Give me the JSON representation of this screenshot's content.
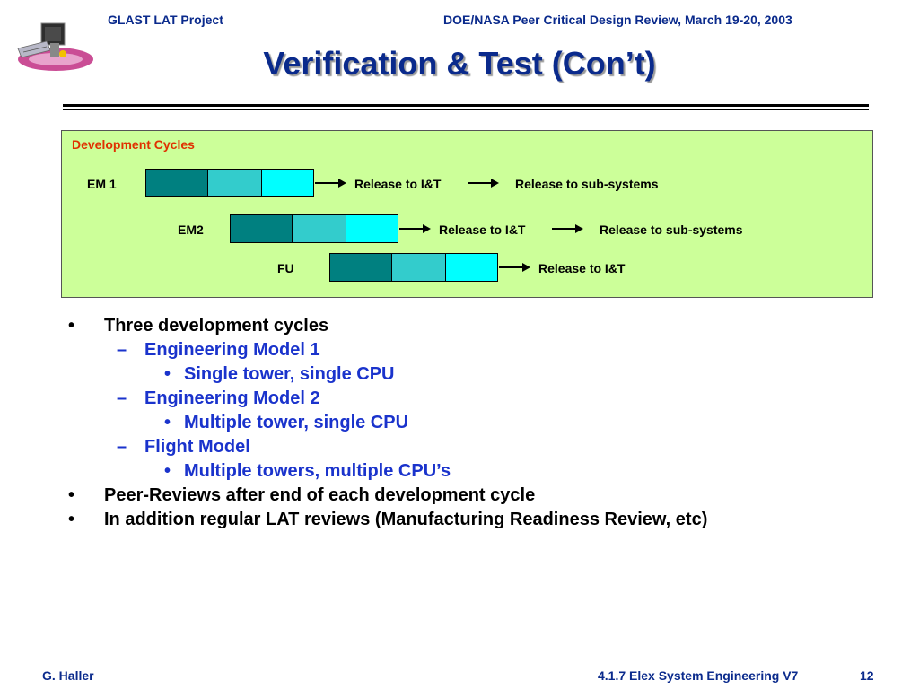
{
  "header": {
    "left": "GLAST LAT Project",
    "right": "DOE/NASA Peer Critical Design Review, March 19-20, 2003"
  },
  "title": "Verification & Test (Con’t)",
  "dev_cycles": {
    "title": "Development Cycles",
    "rows": [
      {
        "label": "EM 1",
        "release1": "Release to I&T",
        "release2": "Release to sub-systems"
      },
      {
        "label": "EM2",
        "release1": "Release to I&T",
        "release2": "Release to sub-systems"
      },
      {
        "label": "FU",
        "release1": "Release to I&T"
      }
    ],
    "colors": {
      "segment1": "#008080",
      "segment2": "#33cccc",
      "segment3": "#00ffff",
      "panel": "#ccff99",
      "title": "#e03000"
    }
  },
  "bullets": [
    {
      "level": 1,
      "marker": "•",
      "text": "Three development cycles"
    },
    {
      "level": 2,
      "marker": "–",
      "text": "Engineering Model 1"
    },
    {
      "level": 3,
      "marker": "•",
      "text": "Single tower, single CPU"
    },
    {
      "level": 2,
      "marker": "–",
      "text": "Engineering Model 2"
    },
    {
      "level": 3,
      "marker": "•",
      "text": "Multiple tower, single CPU"
    },
    {
      "level": 2,
      "marker": "–",
      "text": "Flight Model"
    },
    {
      "level": 3,
      "marker": "•",
      "text": "Multiple towers, multiple CPU’s"
    },
    {
      "level": 1,
      "marker": "•",
      "text": "Peer-Reviews after end of each development cycle"
    },
    {
      "level": 1,
      "marker": "•",
      "text": "In addition regular LAT reviews (Manufacturing Readiness Review, etc)"
    }
  ],
  "footer": {
    "left": "G. Haller",
    "right": "4.1.7 Elex System Engineering V7",
    "page": "12"
  },
  "icons": {
    "logo": "glast-satellite-logo-icon",
    "arrow": "right-arrow-icon"
  }
}
